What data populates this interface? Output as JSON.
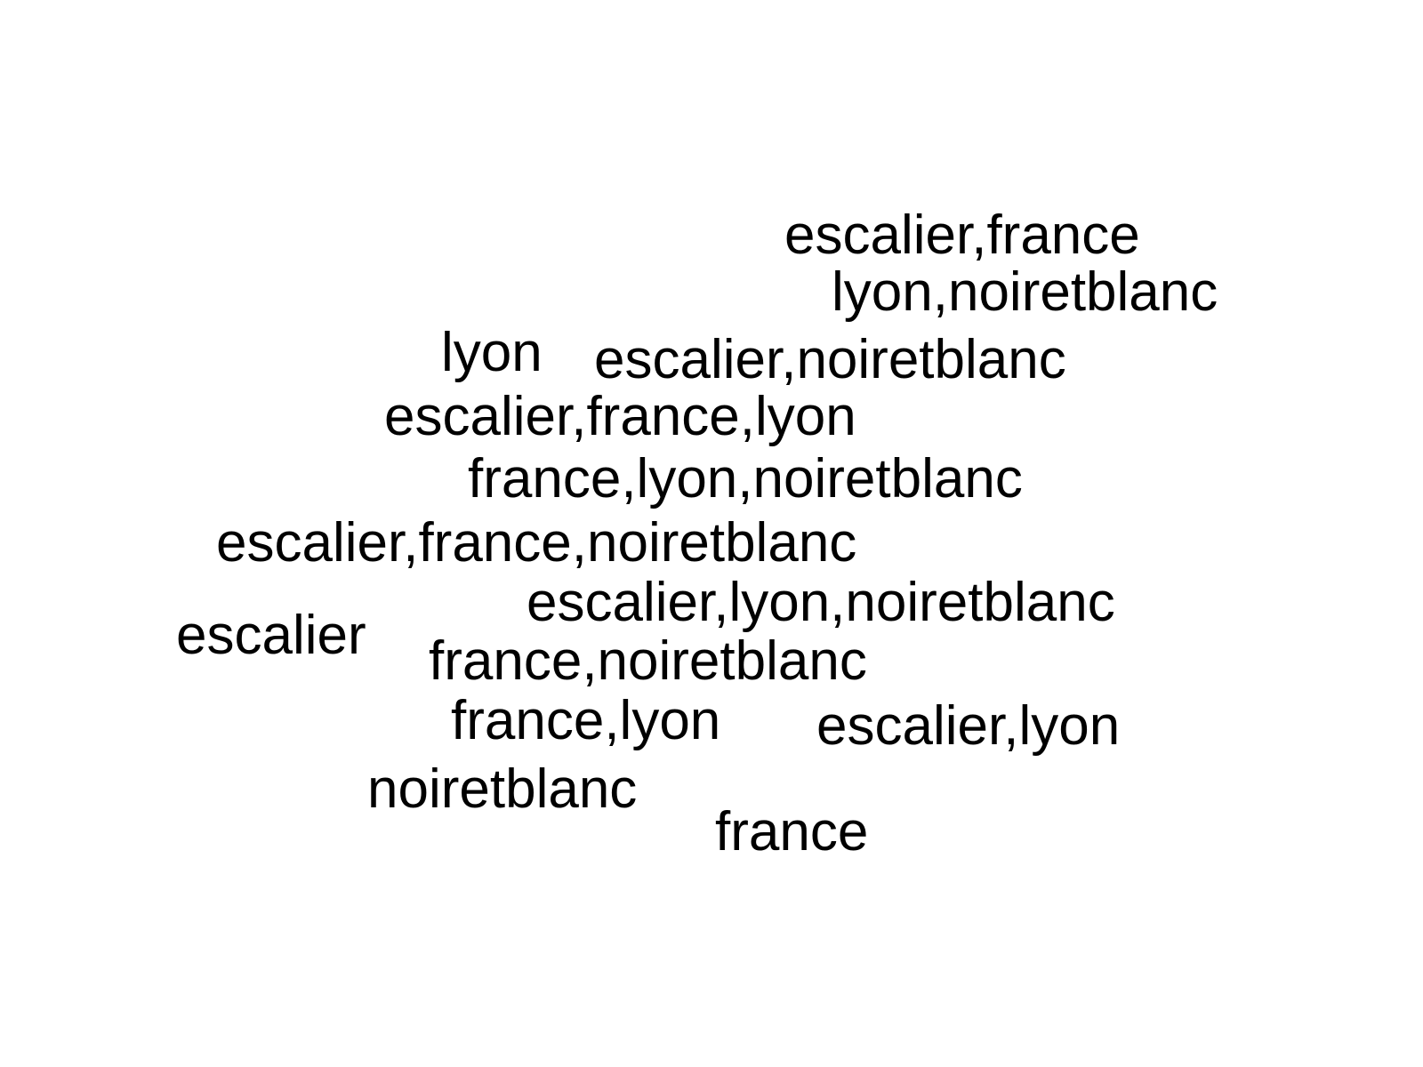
{
  "words": [
    "escalier,france",
    "lyon,noiretblanc",
    "lyon",
    "escalier,noiretblanc",
    "escalier,france,lyon",
    "france,lyon,noiretblanc",
    "escalier,france,noiretblanc",
    "escalier,lyon,noiretblanc",
    "escalier",
    "france,noiretblanc",
    "france,lyon",
    "escalier,lyon",
    "noiretblanc",
    "france"
  ],
  "colors": {
    "text": "#000000",
    "background": "#ffffff"
  }
}
